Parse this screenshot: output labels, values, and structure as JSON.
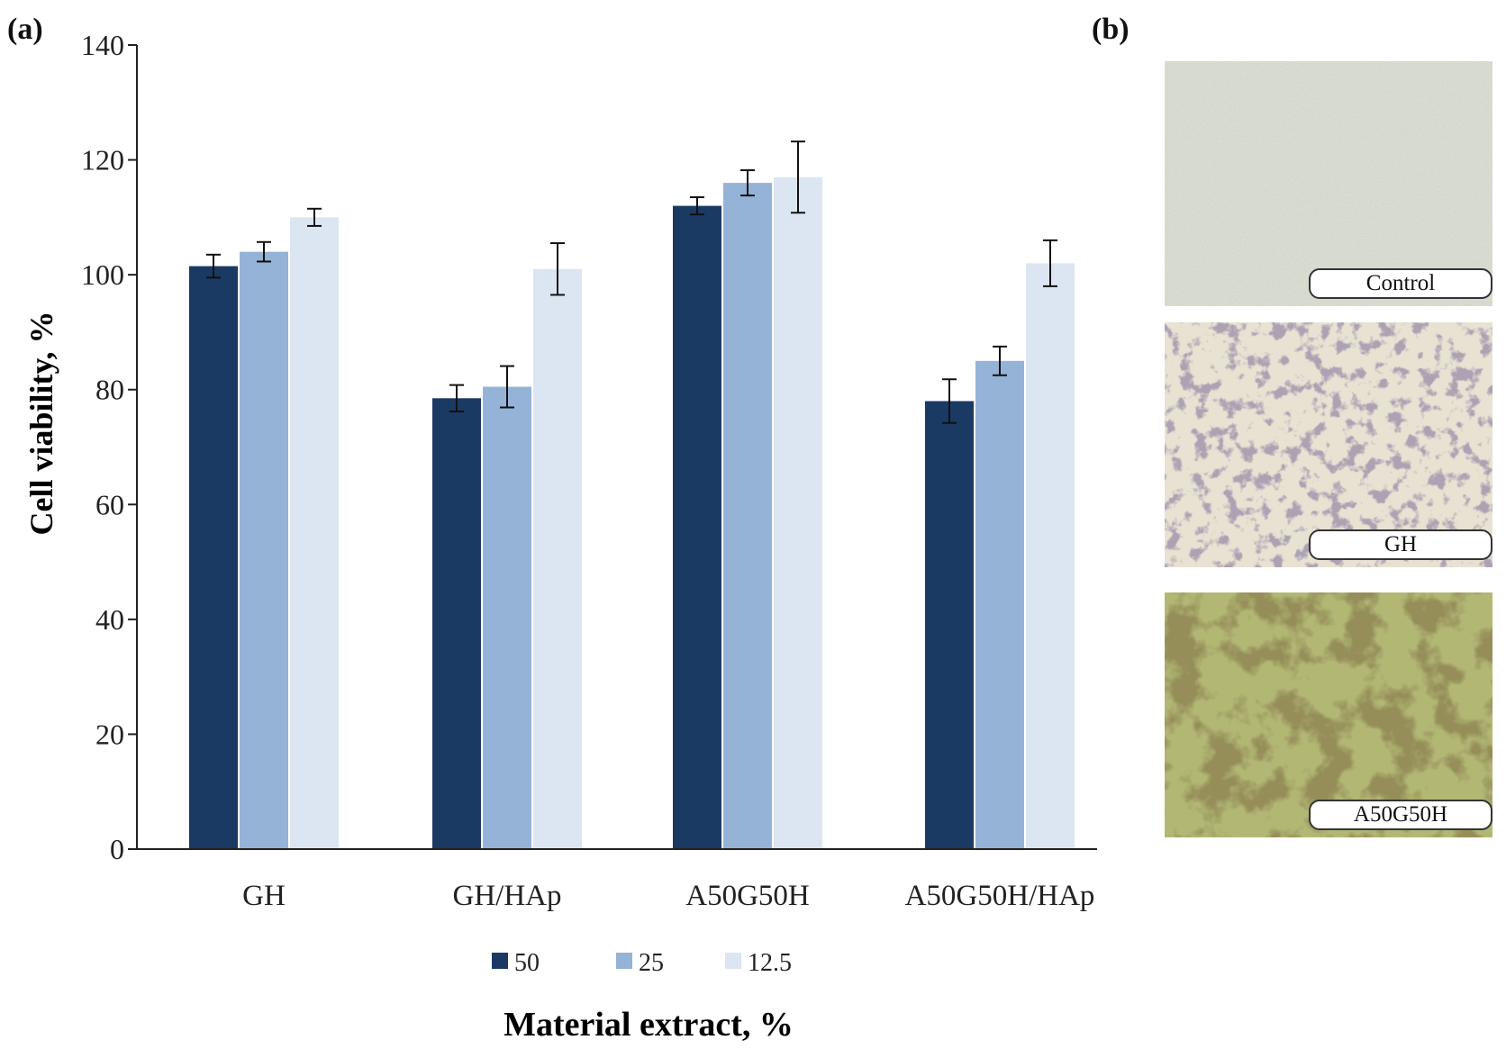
{
  "panel_labels": {
    "a": "(a)",
    "b": "(b)"
  },
  "colors": {
    "series_50": "#1b3a63",
    "series_25": "#95b3d7",
    "series_12_5": "#dce6f2",
    "axis": "#222222"
  },
  "chart_data": {
    "type": "bar",
    "title": "",
    "xlabel": "Material extract, %",
    "ylabel": "Cell viability, %",
    "ylim": [
      0,
      140
    ],
    "yticks": [
      "0",
      "20",
      "40",
      "60",
      "80",
      "100",
      "120",
      "140"
    ],
    "categories": [
      "GH",
      "GH/HAp",
      "A50G50H",
      "A50G50H/HAp"
    ],
    "legend_position": "bottom",
    "grid": false,
    "series": [
      {
        "name": "50",
        "values": [
          101.5,
          78.5,
          112,
          78
        ],
        "errors": [
          2,
          2.3,
          1.5,
          3.8
        ]
      },
      {
        "name": "25",
        "values": [
          104,
          80.5,
          116,
          85
        ],
        "errors": [
          1.7,
          3.6,
          2.2,
          2.5
        ]
      },
      {
        "name": "12.5",
        "values": [
          110,
          101,
          117,
          102
        ],
        "errors": [
          1.5,
          4.5,
          6.2,
          4
        ]
      }
    ]
  },
  "micrographs": [
    {
      "label": "Control",
      "style": "control"
    },
    {
      "label": "GH",
      "style": "gh"
    },
    {
      "label": "A50G50H",
      "style": "a50g50h"
    }
  ]
}
